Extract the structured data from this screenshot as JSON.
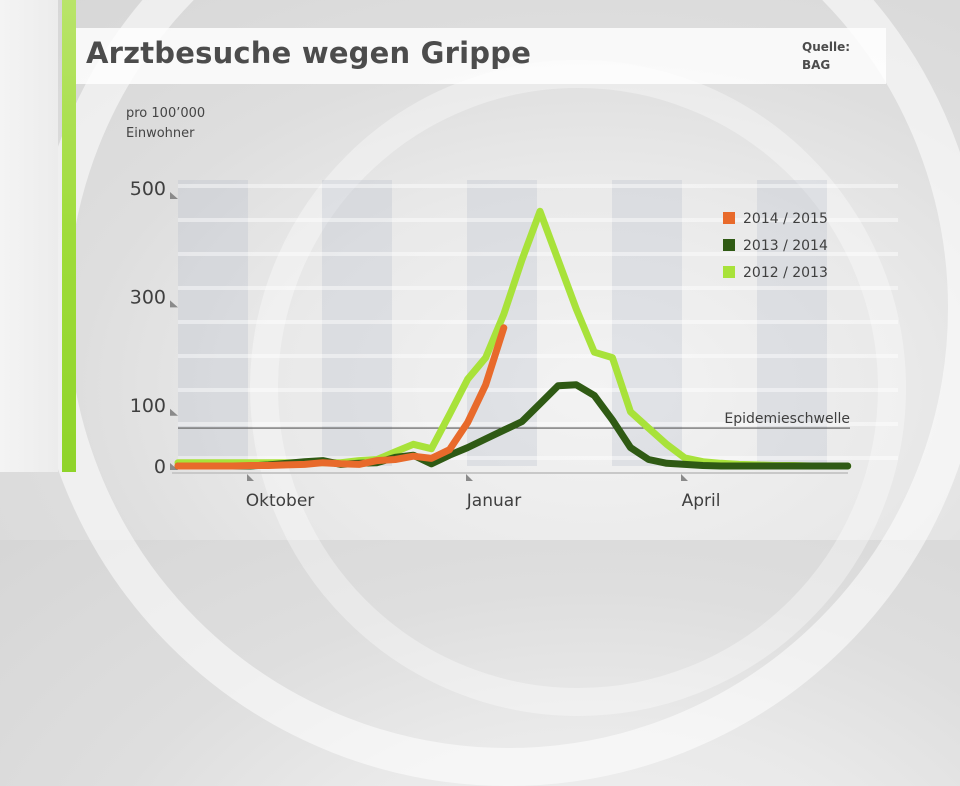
{
  "header": {
    "title": "Arztbesuche wegen Grippe"
  },
  "source": {
    "line1": "Quelle:",
    "line2": "BAG"
  },
  "y_label": {
    "line1": "pro 100’000",
    "line2": "Einwohner"
  },
  "colors": {
    "s2014": "#e86a2b",
    "s2013": "#2f5a14",
    "s2012": "#a8e23a",
    "accent": "#9fdc3a"
  },
  "chart_data": {
    "type": "line",
    "title": "Arztbesuche wegen Grippe",
    "ylabel": "pro 100’000 Einwohner",
    "ylim": [
      0,
      500
    ],
    "x_ticks": [
      "Oktober",
      "Januar",
      "April"
    ],
    "y_ticks": [
      {
        "value": 0,
        "label": "0"
      },
      {
        "value": 100,
        "label": "100"
      },
      {
        "value": 300,
        "label": "300"
      },
      {
        "value": 500,
        "label": "500"
      }
    ],
    "threshold": {
      "label": "Epidemieschwelle",
      "value": 70
    },
    "legend_position": "top-right",
    "grid": "alternating vertical bands",
    "series": [
      {
        "name": "2014 / 2015",
        "key": "s2014",
        "points": [
          [
            0,
            0
          ],
          [
            1,
            0
          ],
          [
            2,
            0
          ],
          [
            3,
            0
          ],
          [
            4,
            1
          ],
          [
            5,
            1
          ],
          [
            6,
            2
          ],
          [
            7,
            3
          ],
          [
            8,
            6
          ],
          [
            9,
            4
          ],
          [
            10,
            3
          ],
          [
            11,
            10
          ],
          [
            12,
            12
          ],
          [
            13,
            18
          ],
          [
            14,
            14
          ],
          [
            15,
            30
          ],
          [
            16,
            80
          ],
          [
            17,
            150
          ],
          [
            18,
            255
          ]
        ]
      },
      {
        "name": "2013 / 2014",
        "key": "s2013",
        "points": [
          [
            0,
            0
          ],
          [
            1,
            0
          ],
          [
            2,
            0
          ],
          [
            3,
            0
          ],
          [
            4,
            0
          ],
          [
            5,
            2
          ],
          [
            6,
            5
          ],
          [
            7,
            8
          ],
          [
            8,
            10
          ],
          [
            9,
            3
          ],
          [
            10,
            5
          ],
          [
            11,
            6
          ],
          [
            12,
            16
          ],
          [
            13,
            20
          ],
          [
            14,
            4
          ],
          [
            15,
            20
          ],
          [
            16,
            34
          ],
          [
            17,
            50
          ],
          [
            18,
            66
          ],
          [
            19,
            82
          ],
          [
            20,
            115
          ],
          [
            21,
            148
          ],
          [
            22,
            150
          ],
          [
            23,
            130
          ],
          [
            24,
            85
          ],
          [
            25,
            34
          ],
          [
            26,
            12
          ],
          [
            27,
            5
          ],
          [
            28,
            3
          ],
          [
            29,
            1
          ],
          [
            30,
            0
          ],
          [
            31,
            0
          ],
          [
            32,
            0
          ],
          [
            33,
            0
          ],
          [
            34,
            0
          ],
          [
            35,
            0
          ],
          [
            36,
            0
          ],
          [
            37,
            0
          ]
        ]
      },
      {
        "name": "2012 / 2013",
        "key": "s2012",
        "points": [
          [
            0,
            6
          ],
          [
            1,
            6
          ],
          [
            2,
            6
          ],
          [
            3,
            6
          ],
          [
            4,
            6
          ],
          [
            5,
            6
          ],
          [
            6,
            6
          ],
          [
            7,
            6
          ],
          [
            8,
            6
          ],
          [
            9,
            6
          ],
          [
            10,
            10
          ],
          [
            11,
            12
          ],
          [
            12,
            26
          ],
          [
            13,
            40
          ],
          [
            14,
            32
          ],
          [
            15,
            95
          ],
          [
            16,
            160
          ],
          [
            17,
            200
          ],
          [
            18,
            280
          ],
          [
            19,
            380
          ],
          [
            20,
            470
          ],
          [
            21,
            380
          ],
          [
            22,
            290
          ],
          [
            23,
            210
          ],
          [
            24,
            200
          ],
          [
            25,
            100
          ],
          [
            26,
            70
          ],
          [
            27,
            40
          ],
          [
            28,
            15
          ],
          [
            29,
            8
          ],
          [
            30,
            5
          ],
          [
            31,
            3
          ],
          [
            32,
            2
          ],
          [
            33,
            1
          ],
          [
            34,
            1
          ],
          [
            35,
            0
          ],
          [
            36,
            0
          ],
          [
            37,
            0
          ]
        ]
      }
    ]
  }
}
